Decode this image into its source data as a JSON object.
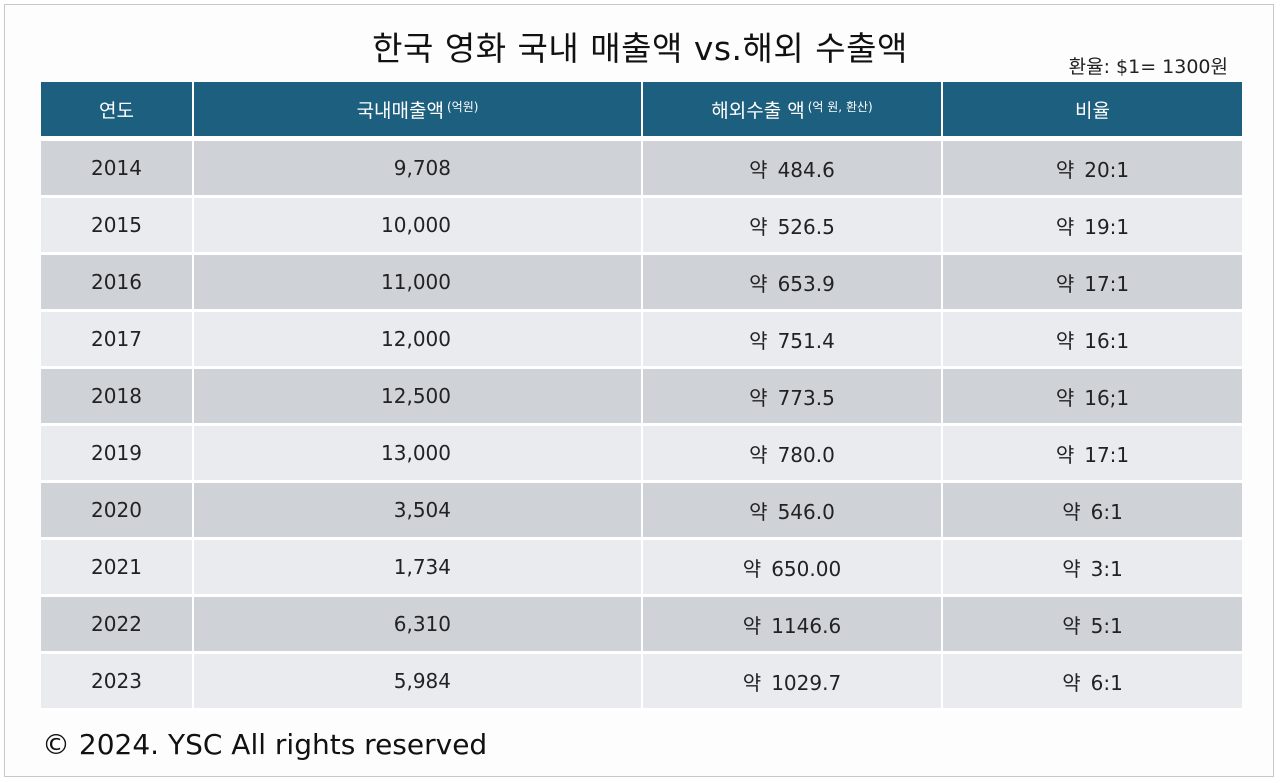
{
  "title": "한국 영화 국내 매출액 vs.해외 수출액",
  "note": "환율: $1= 1300원",
  "footer": "© 2024. YSC All rights reserved",
  "chart_data": {
    "type": "table",
    "title": "한국 영화 국내 매출액 vs.해외 수출액",
    "headers": [
      {
        "label": "연도",
        "sup": ""
      },
      {
        "label": "국내매출액",
        "sup": "(억원)"
      },
      {
        "label": "해외수출 액",
        "sup": "(억 원, 환산)"
      },
      {
        "label": "비율",
        "sup": ""
      }
    ],
    "prefix": "약",
    "rows": [
      {
        "year": "2014",
        "domestic": "9,708",
        "overseas": "484.6",
        "ratio": "20:1"
      },
      {
        "year": "2015",
        "domestic": "10,000",
        "overseas": "526.5",
        "ratio": "19:1"
      },
      {
        "year": "2016",
        "domestic": "11,000",
        "overseas": "653.9",
        "ratio": "17:1"
      },
      {
        "year": "2017",
        "domestic": "12,000",
        "overseas": "751.4",
        "ratio": "16:1"
      },
      {
        "year": "2018",
        "domestic": "12,500",
        "overseas": "773.5",
        "ratio": "16;1"
      },
      {
        "year": "2019",
        "domestic": "13,000",
        "overseas": "780.0",
        "ratio": "17:1"
      },
      {
        "year": "2020",
        "domestic": "3,504",
        "overseas": "546.0",
        "ratio": "6:1"
      },
      {
        "year": "2021",
        "domestic": "1,734",
        "overseas": "650.00",
        "ratio": "3:1"
      },
      {
        "year": "2022",
        "domestic": "6,310",
        "overseas": "1146.6",
        "ratio": "5:1"
      },
      {
        "year": "2023",
        "domestic": "5,984",
        "overseas": "1029.7",
        "ratio": "6:1"
      }
    ]
  }
}
